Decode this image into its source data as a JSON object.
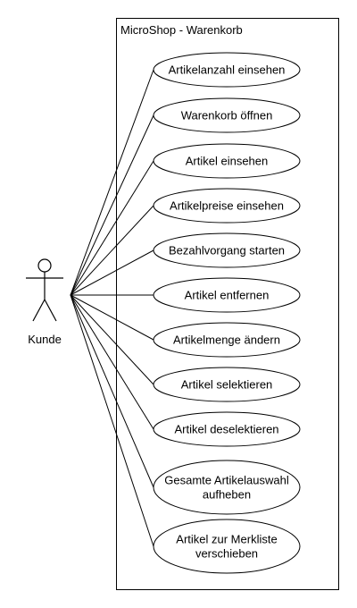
{
  "system": {
    "title": "MicroShop - Warenkorb"
  },
  "actor": {
    "name": "Kunde"
  },
  "use_cases": [
    {
      "lines": [
        "Artikelanzahl einsehen"
      ]
    },
    {
      "lines": [
        "Warenkorb öffnen"
      ]
    },
    {
      "lines": [
        "Artikel einsehen"
      ]
    },
    {
      "lines": [
        "Artikelpreise einsehen"
      ]
    },
    {
      "lines": [
        "Bezahlvorgang starten"
      ]
    },
    {
      "lines": [
        "Artikel entfernen"
      ]
    },
    {
      "lines": [
        "Artikelmenge ändern"
      ]
    },
    {
      "lines": [
        "Artikel selektieren"
      ]
    },
    {
      "lines": [
        "Artikel deselektieren"
      ]
    },
    {
      "lines": [
        "Gesamte Artikelauswahl",
        "aufheben"
      ]
    },
    {
      "lines": [
        "Artikel zur Merkliste",
        "verschieben"
      ]
    }
  ]
}
